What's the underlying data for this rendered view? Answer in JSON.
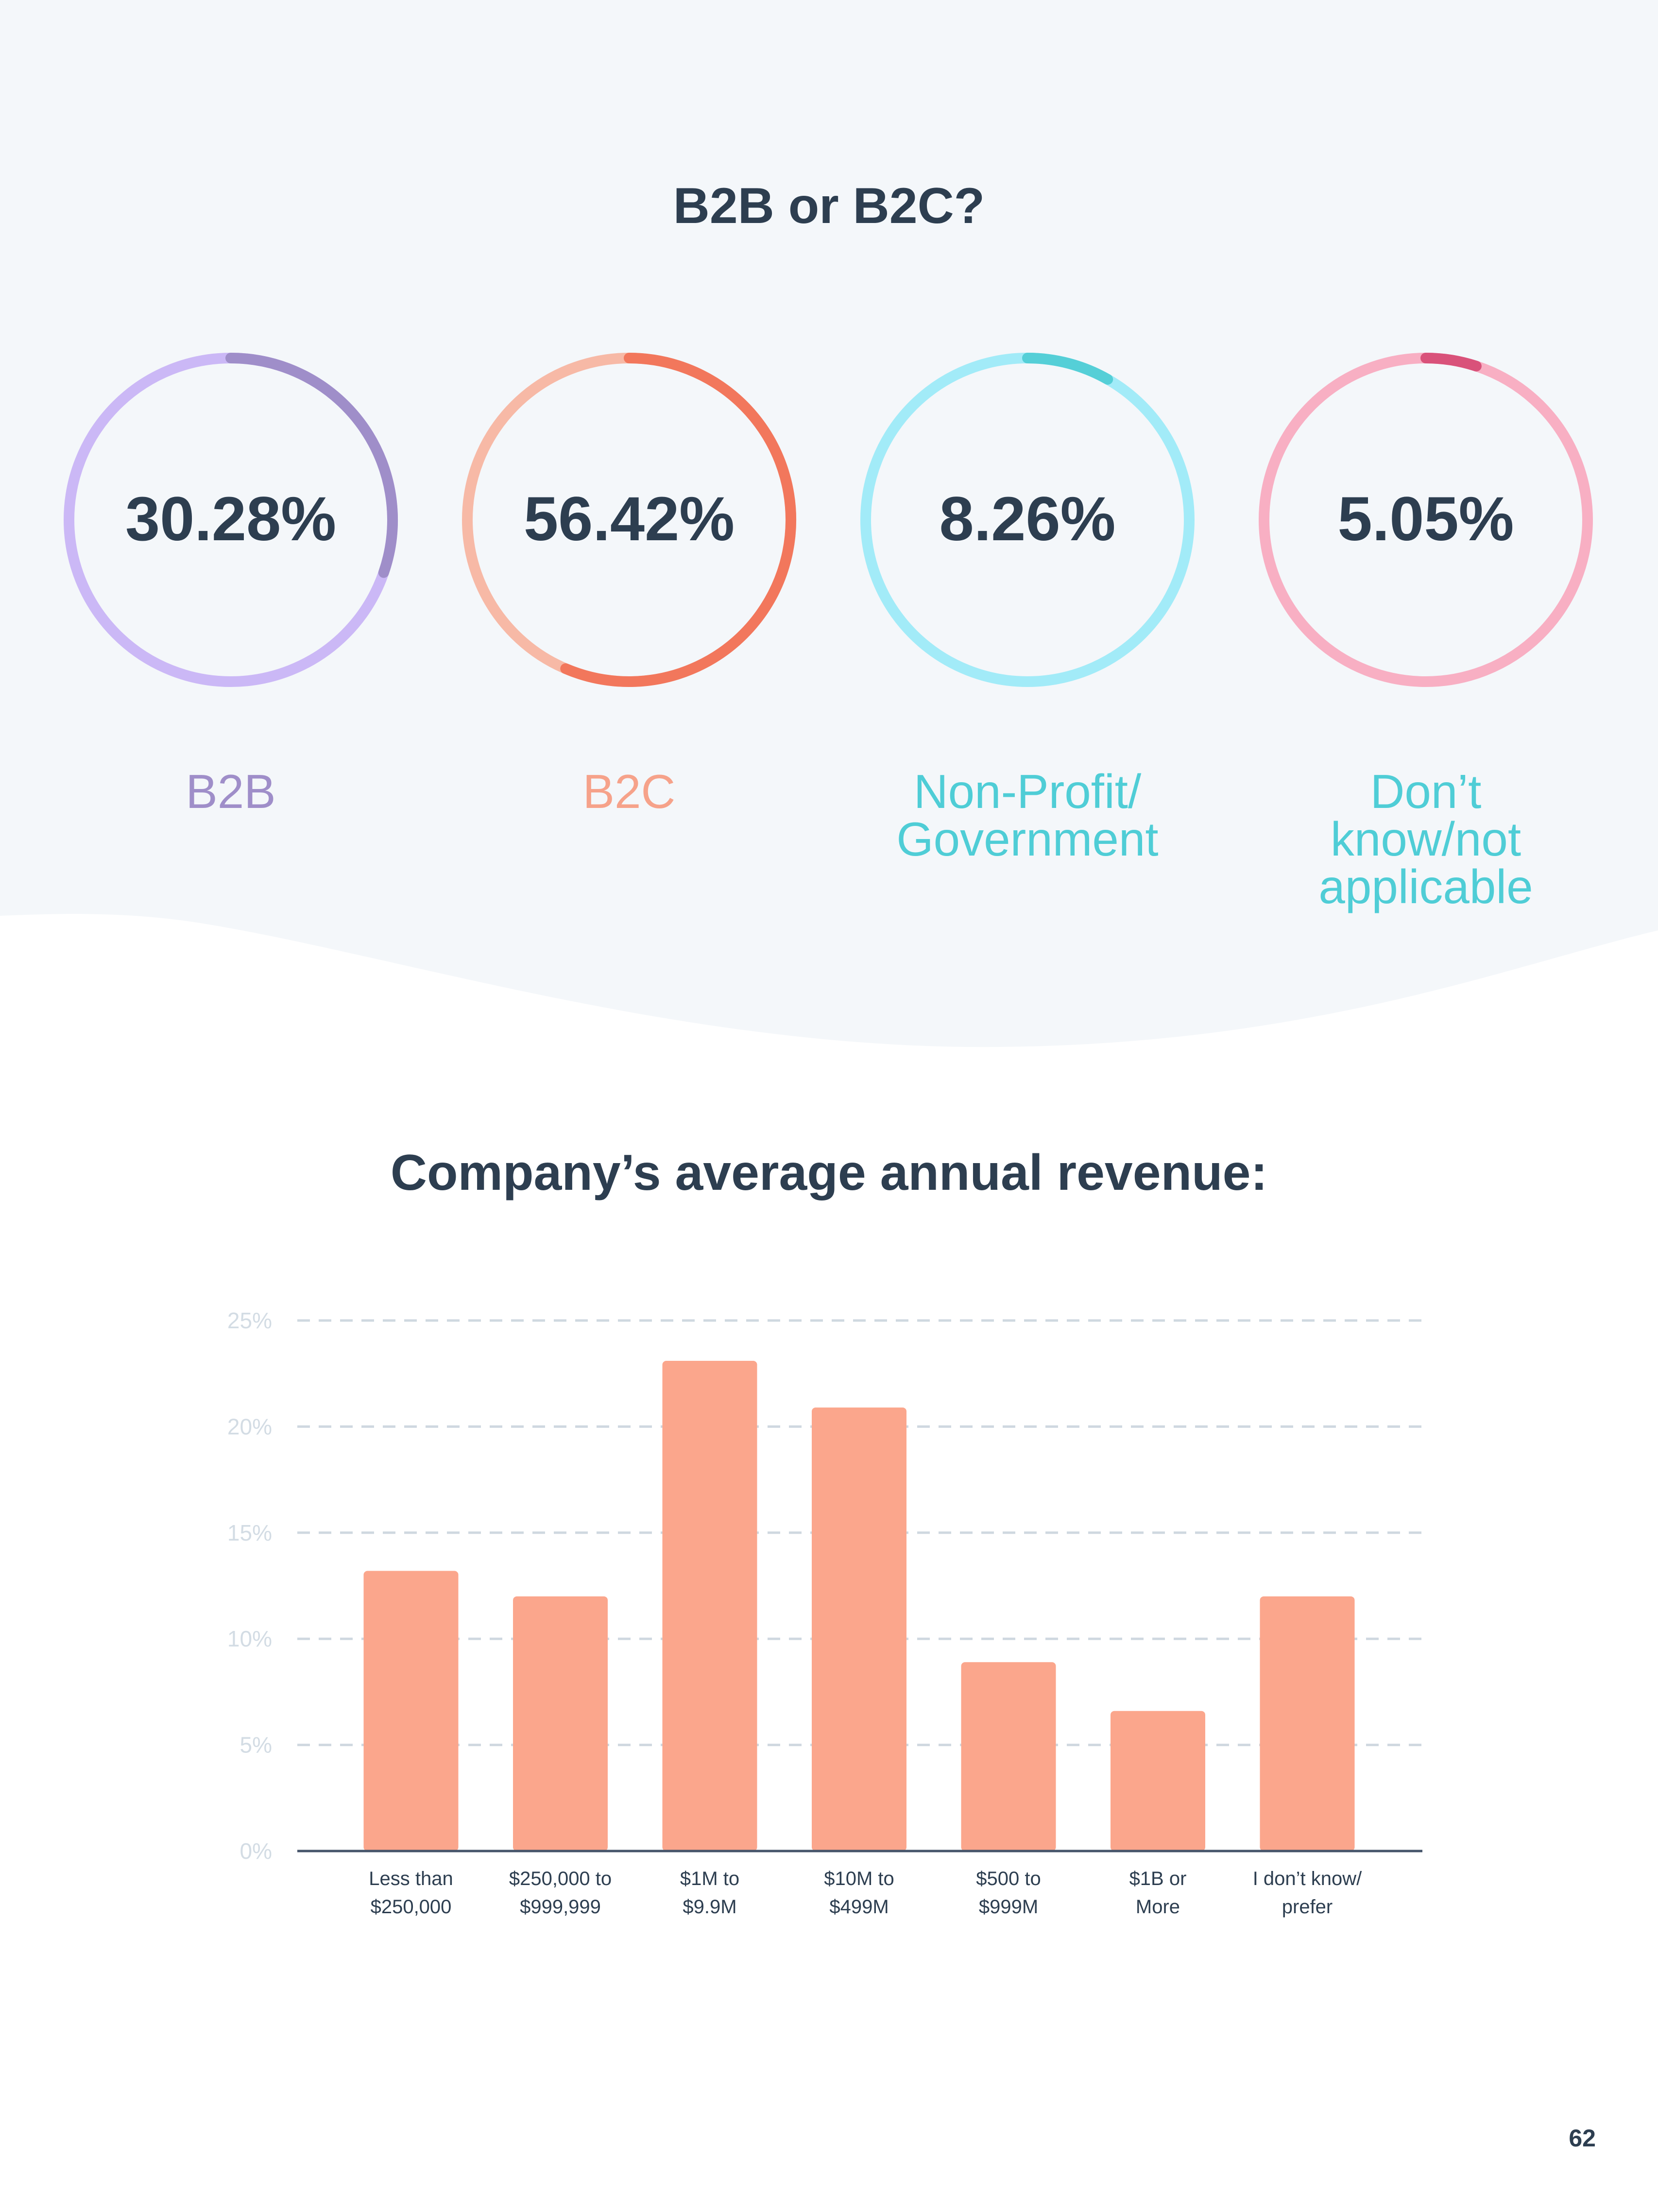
{
  "page_number": "62",
  "donut_section": {
    "title": "B2B or B2C?",
    "items": [
      {
        "value": 30.28,
        "value_label": "30.28%",
        "label": "B2B",
        "track_color": "#cbb8f6",
        "arc_color": "#9f8ec9",
        "label_color": "#9f8ec9"
      },
      {
        "value": 56.42,
        "value_label": "56.42%",
        "label": "B2C",
        "track_color": "#f7b9a6",
        "arc_color": "#f2775c",
        "label_color": "#f6a28a"
      },
      {
        "value": 8.26,
        "value_label": "8.26%",
        "label": "Non-Profit/\nGovernment",
        "track_color": "#a2ebf8",
        "arc_color": "#55cfd7",
        "label_color": "#4fcdd6"
      },
      {
        "value": 5.05,
        "value_label": "5.05%",
        "label": "Don’t\nknow/not\napplicable",
        "track_color": "#f8afc3",
        "arc_color": "#d9527a",
        "label_color": "#4fcdd6"
      }
    ]
  },
  "bar_section": {
    "title": "Company’s average annual revenue:"
  },
  "chart_data": {
    "type": "bar",
    "title": "Company’s average annual revenue:",
    "categories": [
      "Less than\n$250,000",
      "$250,000 to\n$999,999",
      "$1M to\n$9.9M",
      "$10M to\n$499M",
      "$500 to\n$999M",
      "$1B or\nMore",
      "I don’t know/\nprefer"
    ],
    "values": [
      13.2,
      12.0,
      23.1,
      20.9,
      8.9,
      6.6,
      12.0
    ],
    "ylim": [
      0,
      25
    ],
    "yticks": [
      0,
      5,
      10,
      15,
      20,
      25
    ],
    "ytick_labels": [
      "0%",
      "5%",
      "10%",
      "15%",
      "20%",
      "25%"
    ],
    "grid": true,
    "bar_color": "#fba68c",
    "xlabel": "",
    "ylabel": ""
  }
}
